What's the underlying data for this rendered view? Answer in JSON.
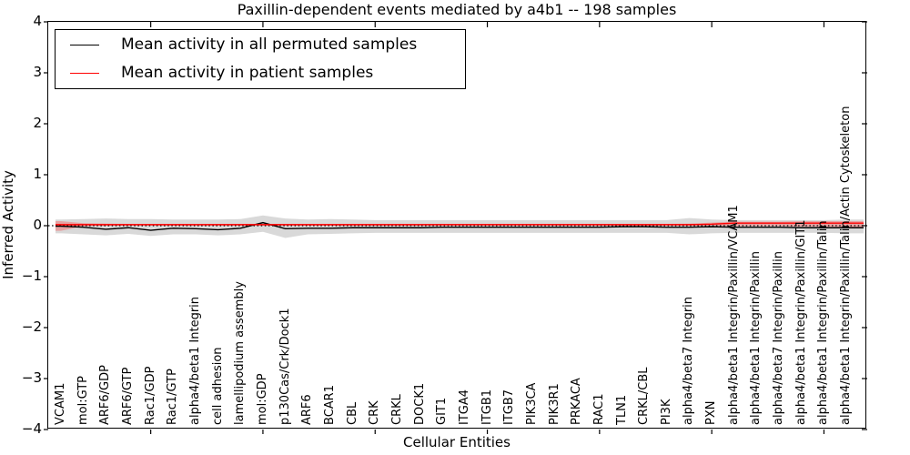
{
  "figure": {
    "title": "Paxillin-dependent events mediated by a4b1 -- 198 samples",
    "xlabel": "Cellular Entities",
    "ylabel": "Inferred Activity"
  },
  "legend": {
    "items": [
      {
        "label": "Mean activity in all permuted samples",
        "color": "#000000"
      },
      {
        "label": "Mean activity in patient samples",
        "color": "#ff0000"
      }
    ]
  },
  "chart_data": {
    "type": "line",
    "title": "Paxillin-dependent events mediated by a4b1 -- 198 samples",
    "xlabel": "Cellular Entities",
    "ylabel": "Inferred Activity",
    "ylim": [
      -4,
      4
    ],
    "y_tick_labels": [
      "4",
      "3",
      "2",
      "1",
      "0",
      "−1",
      "−2",
      "−3",
      "−4"
    ],
    "x_major_tick_indices": [
      4,
      9,
      14,
      19,
      24,
      29,
      34
    ],
    "grid": false,
    "legend_position": "upper left",
    "zero_line": "dotted",
    "categories": [
      "VCAM1",
      "mol:GTP",
      "ARF6/GDP",
      "ARF6/GTP",
      "Rac1/GDP",
      "Rac1/GTP",
      "alpha4/beta1 Integrin",
      "cell adhesion",
      "lamellipodium assembly",
      "mol:GDP",
      "p130Cas/Crk/Dock1",
      "ARF6",
      "BCAR1",
      "CBL",
      "CRK",
      "CRKL",
      "DOCK1",
      "GIT1",
      "ITGA4",
      "ITGB1",
      "ITGB7",
      "PIK3CA",
      "PIK3R1",
      "PRKACA",
      "RAC1",
      "TLN1",
      "CRKL/CBL",
      "PI3K",
      "alpha4/beta7 Integrin",
      "PXN",
      "alpha4/beta1 Integrin/Paxillin/VCAM1",
      "alpha4/beta1 Integrin/Paxillin",
      "alpha4/beta7 Integrin/Paxillin",
      "alpha4/beta1 Integrin/Paxillin/GIT1",
      "alpha4/beta1 Integrin/Paxillin/Talin",
      "alpha4/beta1 Integrin/Paxillin/Talin/Actin Cytoskeleton"
    ],
    "series": [
      {
        "name": "Mean activity in all permuted samples",
        "color": "#000000",
        "band_color": "rgba(120,120,120,0.28)",
        "values": [
          -0.01,
          -0.03,
          -0.07,
          -0.04,
          -0.09,
          -0.05,
          -0.06,
          -0.08,
          -0.05,
          0.06,
          -0.06,
          -0.05,
          -0.05,
          -0.04,
          -0.04,
          -0.04,
          -0.04,
          -0.03,
          -0.03,
          -0.03,
          -0.03,
          -0.03,
          -0.03,
          -0.03,
          -0.03,
          -0.02,
          -0.02,
          -0.03,
          -0.03,
          -0.02,
          -0.03,
          -0.03,
          -0.03,
          -0.04,
          -0.04,
          -0.04
        ],
        "band_upper": [
          0.12,
          0.13,
          0.14,
          0.13,
          0.13,
          0.12,
          0.12,
          0.12,
          0.13,
          0.2,
          0.14,
          0.12,
          0.13,
          0.12,
          0.11,
          0.11,
          0.11,
          0.11,
          0.11,
          0.11,
          0.11,
          0.11,
          0.11,
          0.11,
          0.11,
          0.11,
          0.11,
          0.11,
          0.15,
          0.12,
          0.11,
          0.11,
          0.11,
          0.11,
          0.11,
          0.12
        ],
        "band_lower": [
          -0.15,
          -0.17,
          -0.19,
          -0.16,
          -0.2,
          -0.17,
          -0.17,
          -0.19,
          -0.17,
          -0.12,
          -0.24,
          -0.17,
          -0.16,
          -0.15,
          -0.14,
          -0.14,
          -0.14,
          -0.14,
          -0.14,
          -0.14,
          -0.14,
          -0.14,
          -0.14,
          -0.14,
          -0.14,
          -0.14,
          -0.14,
          -0.14,
          -0.17,
          -0.15,
          -0.14,
          -0.14,
          -0.14,
          -0.14,
          -0.14,
          -0.15
        ]
      },
      {
        "name": "Mean activity in patient samples",
        "color": "#ff0000",
        "band_color": "rgba(255,60,60,0.35)",
        "values": [
          0.02,
          0.02,
          0.02,
          0.02,
          0.02,
          0.02,
          0.02,
          0.02,
          0.02,
          0.02,
          0.02,
          0.02,
          0.02,
          0.02,
          0.02,
          0.02,
          0.02,
          0.02,
          0.02,
          0.02,
          0.02,
          0.02,
          0.02,
          0.02,
          0.02,
          0.02,
          0.02,
          0.02,
          0.02,
          0.03,
          0.05,
          0.05,
          0.05,
          0.05,
          0.05,
          0.05
        ],
        "band_upper": [
          0.09,
          0.05,
          0.04,
          0.035,
          0.035,
          0.035,
          0.035,
          0.035,
          0.035,
          0.035,
          0.035,
          0.035,
          0.035,
          0.035,
          0.035,
          0.035,
          0.035,
          0.035,
          0.035,
          0.035,
          0.035,
          0.035,
          0.035,
          0.035,
          0.035,
          0.035,
          0.035,
          0.035,
          0.04,
          0.06,
          0.08,
          0.08,
          0.08,
          0.09,
          0.09,
          0.09
        ],
        "band_lower": [
          -0.1,
          -0.01,
          0.0,
          0.005,
          0.005,
          0.005,
          0.005,
          0.005,
          0.005,
          0.005,
          0.005,
          0.005,
          0.005,
          0.005,
          0.005,
          0.005,
          0.005,
          0.005,
          0.005,
          0.005,
          0.005,
          0.005,
          0.005,
          0.005,
          0.005,
          0.005,
          0.005,
          0.005,
          0.0,
          -0.005,
          -0.01,
          -0.01,
          -0.01,
          -0.02,
          -0.02,
          -0.03
        ]
      }
    ]
  }
}
